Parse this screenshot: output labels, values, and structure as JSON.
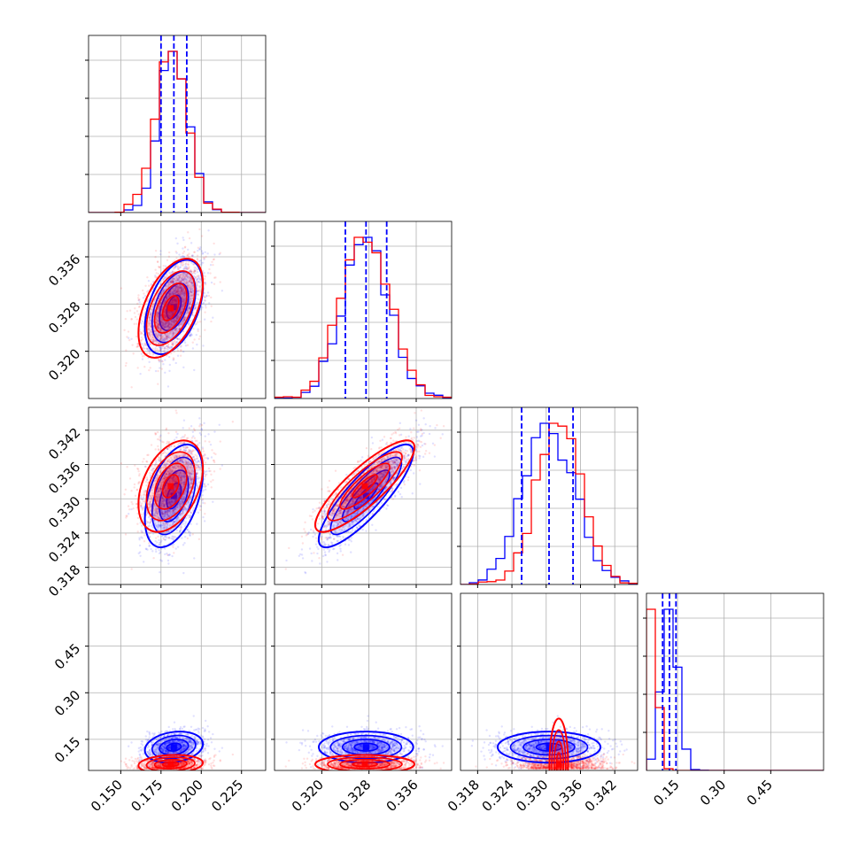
{
  "colors": {
    "blue": "#0000ff",
    "red": "#ff0000",
    "grid": "#b0b0b0",
    "frame": "#000000"
  },
  "chart_data": {
    "type": "corner",
    "grid": true,
    "legend": "none",
    "parameters": [
      {
        "range": [
          0.13,
          0.24
        ],
        "ticks": [
          0.15,
          0.175,
          0.2,
          0.225
        ],
        "tick_labels": [
          "0.150",
          "0.175",
          "0.200",
          "0.225"
        ]
      },
      {
        "range": [
          0.312,
          0.342
        ],
        "ticks": [
          0.32,
          0.328,
          0.336
        ],
        "tick_labels": [
          "0.320",
          "0.328",
          "0.336"
        ]
      },
      {
        "range": [
          0.315,
          0.346
        ],
        "ticks": [
          0.318,
          0.324,
          0.33,
          0.336,
          0.342
        ],
        "tick_labels": [
          "0.318",
          "0.324",
          "0.330",
          "0.336",
          "0.342"
        ]
      },
      {
        "range": [
          0.05,
          0.62
        ],
        "ticks": [
          0.15,
          0.3,
          0.45
        ],
        "tick_labels": [
          "0.15",
          "0.30",
          "0.45"
        ]
      }
    ],
    "series": [
      {
        "color_key": "blue",
        "means": [
          0.183,
          0.3275,
          0.3305,
          0.125
        ],
        "sigmas": [
          0.009,
          0.004,
          0.0045,
          0.025
        ],
        "correlations": [
          [
            1,
            0.45,
            0.45,
            0.2
          ],
          [
            0.45,
            1,
            0.85,
            0.0
          ],
          [
            0.45,
            0.85,
            1,
            0.0
          ],
          [
            0.2,
            0.0,
            0.0,
            1
          ]
        ],
        "quantile_lines": [
          [
            0.175,
            0.183,
            0.191
          ],
          [
            0.324,
            0.3275,
            0.331
          ],
          [
            0.3257,
            0.3305,
            0.3347
          ],
          [
            0.102,
            0.124,
            0.145
          ]
        ]
      },
      {
        "color_key": "red",
        "means": [
          0.181,
          0.3273,
          0.3322,
          0.07
        ],
        "sigmas": [
          0.01,
          0.0042,
          0.004,
          0.015
        ],
        "correlations": [
          [
            1,
            0.5,
            0.4,
            0.15
          ],
          [
            0.5,
            1,
            0.85,
            0.0
          ],
          [
            0.4,
            0.85,
            1,
            0.0
          ],
          [
            0.15,
            0.0,
            0.0,
            1
          ]
        ],
        "quantile_lines": null
      }
    ]
  }
}
